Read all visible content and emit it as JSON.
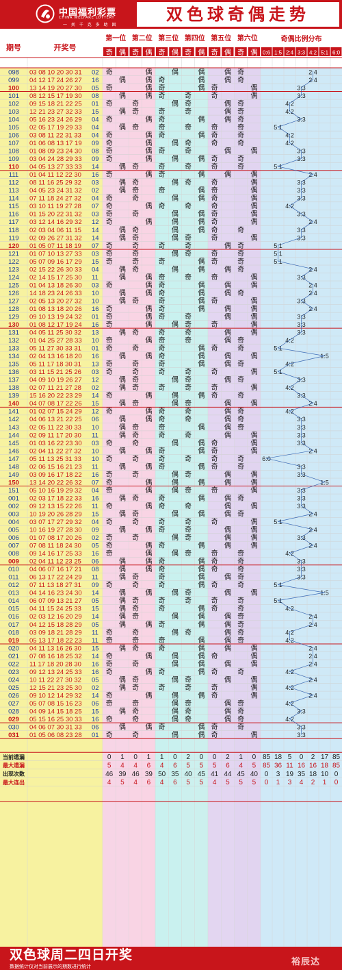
{
  "header": {
    "logo_cn": "中国福利彩票",
    "logo_en": "CHINA WELFARE LOTTERY",
    "logo_slogan": "一 关 千 克 多 助 困",
    "title": "双色球奇偶走势"
  },
  "columns": {
    "period": "期号",
    "draw": "开奖号",
    "positions": [
      "第一位",
      "第二位",
      "第三位",
      "第四位",
      "第五位",
      "第六位"
    ],
    "odd": "奇",
    "even": "偶",
    "ratio_title": "奇偶比例分布",
    "ratios": [
      "0:6",
      "1:5",
      "2:4",
      "3:3",
      "4:2",
      "5:1",
      "6:0"
    ]
  },
  "chart_data": {
    "type": "table",
    "rows": [
      {
        "p": "098",
        "n": "03 08 10 20 30 31",
        "b": "02"
      },
      {
        "p": "099",
        "n": "04 12 17 24 26 27",
        "b": "16"
      },
      {
        "p": "100",
        "n": "13 14 19 20 27 30",
        "b": "05"
      },
      {
        "p": "101",
        "n": "08 12 15 17 19 30",
        "b": "08"
      },
      {
        "p": "102",
        "n": "09 15 18 21 22 25",
        "b": "01"
      },
      {
        "p": "103",
        "n": "12 21 23 27 32 33",
        "b": "15"
      },
      {
        "p": "104",
        "n": "05 16 23 24 26 29",
        "b": "04"
      },
      {
        "p": "105",
        "n": "02 05 17 19 29 33",
        "b": "04"
      },
      {
        "p": "106",
        "n": "03 08 11 22 31 33",
        "b": "04"
      },
      {
        "p": "107",
        "n": "01 06 08 13 17 19",
        "b": "09"
      },
      {
        "p": "108",
        "n": "01 08 09 23 24 30",
        "b": "08"
      },
      {
        "p": "109",
        "n": "03 04 24 28 29 33",
        "b": "09"
      },
      {
        "p": "110",
        "n": "04 05 13 27 33 33",
        "b": "14"
      },
      {
        "p": "111",
        "n": "01 04 11 12 22 30",
        "b": "16"
      },
      {
        "p": "112",
        "n": "08 11 16 25 29 32",
        "b": "03"
      },
      {
        "p": "113",
        "n": "04 05 23 24 31 32",
        "b": "02"
      },
      {
        "p": "114",
        "n": "07 11 18 24 27 32",
        "b": "04"
      },
      {
        "p": "115",
        "n": "03 10 11 19 27 28",
        "b": "07"
      },
      {
        "p": "116",
        "n": "01 15 20 22 31 32",
        "b": "03"
      },
      {
        "p": "117",
        "n": "03 12 14 16 29 32",
        "b": "12"
      },
      {
        "p": "118",
        "n": "02 03 04 06 11 15",
        "b": "14"
      },
      {
        "p": "119",
        "n": "02 09 26 27 31 32",
        "b": "14"
      },
      {
        "p": "120",
        "n": "01 05 07 11 18 19",
        "b": "07"
      },
      {
        "p": "121",
        "n": "01 07 10 13 27 33",
        "b": "03"
      },
      {
        "p": "122",
        "n": "05 07 09 16 17 29",
        "b": "15"
      },
      {
        "p": "123",
        "n": "02 15 22 26 30 33",
        "b": "04"
      },
      {
        "p": "124",
        "n": "02 14 15 17 25 30",
        "b": "11"
      },
      {
        "p": "125",
        "n": "01 04 13 18 26 30",
        "b": "03"
      },
      {
        "p": "126",
        "n": "14 18 23 24 26 33",
        "b": "10"
      },
      {
        "p": "127",
        "n": "02 05 13 20 27 32",
        "b": "10"
      },
      {
        "p": "128",
        "n": "01 08 13 18 20 26",
        "b": "16"
      },
      {
        "p": "129",
        "n": "09 10 13 19 24 32",
        "b": "01"
      },
      {
        "p": "130",
        "n": "01 08 12 17 19 24",
        "b": "16"
      },
      {
        "p": "131",
        "n": "04 05 11 25 30 32",
        "b": "13"
      },
      {
        "p": "132",
        "n": "01 04 25 27 28 33",
        "b": "10"
      },
      {
        "p": "133",
        "n": "05 11 27 30 33 31",
        "b": "01"
      },
      {
        "p": "134",
        "n": "02 04 13 16 18 20",
        "b": "16"
      },
      {
        "p": "135",
        "n": "05 11 17 18 30 31",
        "b": "13"
      },
      {
        "p": "136",
        "n": "03 11 15 21 25 26",
        "b": "03"
      },
      {
        "p": "137",
        "n": "04 09 10 19 26 27",
        "b": "12"
      },
      {
        "p": "138",
        "n": "02 07 11 21 27 28",
        "b": "02"
      },
      {
        "p": "139",
        "n": "15 16 20 22 23 29",
        "b": "14"
      },
      {
        "p": "140",
        "n": "04 07 08 17 22 26",
        "b": "15"
      },
      {
        "p": "141",
        "n": "01 02 07 15 24 29",
        "b": "12"
      },
      {
        "p": "142",
        "n": "04 06 13 21 22 25",
        "b": "06"
      },
      {
        "p": "143",
        "n": "02 05 11 22 30 33",
        "b": "10"
      },
      {
        "p": "144",
        "n": "02 09 11 17 20 30",
        "b": "11"
      },
      {
        "p": "145",
        "n": "01 03 16 22 23 30",
        "b": "03"
      },
      {
        "p": "146",
        "n": "02 04 11 22 27 32",
        "b": "10"
      },
      {
        "p": "147",
        "n": "05 11 13 25 31 33",
        "b": "10"
      },
      {
        "p": "148",
        "n": "02 06 15 16 21 23",
        "b": "11"
      },
      {
        "p": "149",
        "n": "03 09 16 17 18 22",
        "b": "16"
      },
      {
        "p": "150",
        "n": "13 14 20 22 26 32",
        "b": "07"
      },
      {
        "p": "151",
        "n": "05 10 16 19 29 32",
        "b": "04"
      },
      {
        "p": "001",
        "n": "02 03 17 18 22 33",
        "b": "16"
      },
      {
        "p": "002",
        "n": "09 12 13 15 22 26",
        "b": "11"
      },
      {
        "p": "003",
        "n": "10 19 20 26 28 29",
        "b": "15"
      },
      {
        "p": "004",
        "n": "03 07 17 27 29 32",
        "b": "04"
      },
      {
        "p": "005",
        "n": "10 16 19 27 28 30",
        "b": "09"
      },
      {
        "p": "006",
        "n": "01 07 08 17 20 26",
        "b": "02"
      },
      {
        "p": "007",
        "n": "07 08 11 18 24 30",
        "b": "05"
      },
      {
        "p": "008",
        "n": "09 14 16 17 25 33",
        "b": "16"
      },
      {
        "p": "009",
        "n": "02 04 11 12 23 25",
        "b": "06"
      },
      {
        "p": "010",
        "n": "04 06 07 16 17 21",
        "b": "08"
      },
      {
        "p": "011",
        "n": "06 13 17 22 24 29",
        "b": "11"
      },
      {
        "p": "012",
        "n": "07 11 13 18 27 31",
        "b": "09"
      },
      {
        "p": "013",
        "n": "04 14 16 23 24 30",
        "b": "14"
      },
      {
        "p": "014",
        "n": "06 07 09 13 21 27",
        "b": "05"
      },
      {
        "p": "015",
        "n": "04 11 15 24 25 33",
        "b": "15"
      },
      {
        "p": "016",
        "n": "02 03 12 16 20 29",
        "b": "14"
      },
      {
        "p": "017",
        "n": "04 12 15 18 28 29",
        "b": "05"
      },
      {
        "p": "018",
        "n": "03 09 18 21 28 29",
        "b": "11"
      },
      {
        "p": "019",
        "n": "05 13 17 18 22 23",
        "b": "11"
      },
      {
        "p": "020",
        "n": "04 11 13 16 26 30",
        "b": "15"
      },
      {
        "p": "021",
        "n": "07 08 16 18 25 32",
        "b": "14"
      },
      {
        "p": "022",
        "n": "11 17 18 20 28 30",
        "b": "16"
      },
      {
        "p": "023",
        "n": "09 12 13 24 25 33",
        "b": "16"
      },
      {
        "p": "024",
        "n": "10 11 22 27 30 32",
        "b": "05"
      },
      {
        "p": "025",
        "n": "12 15 21 23 25 30",
        "b": "02"
      },
      {
        "p": "026",
        "n": "09 10 12 14 29 32",
        "b": "14"
      },
      {
        "p": "027",
        "n": "05 07 08 15 16 23",
        "b": "06"
      },
      {
        "p": "028",
        "n": "04 09 14 15 18 25",
        "b": "15"
      },
      {
        "p": "029",
        "n": "05 15 16 25 30 33",
        "b": "16"
      },
      {
        "p": "030",
        "n": "04 06 07 30 31 33",
        "b": "06"
      },
      {
        "p": "031",
        "n": "01 05 06 08 23 28",
        "b": "01"
      }
    ],
    "stats": [
      {
        "label": "当前遗漏",
        "values": [
          0,
          1,
          0,
          1,
          1,
          0,
          2,
          0,
          0,
          2,
          1,
          0,
          85,
          18,
          5,
          0,
          2,
          17,
          85
        ]
      },
      {
        "label": "最大遗漏",
        "values": [
          5,
          4,
          4,
          6,
          4,
          6,
          5,
          5,
          5,
          6,
          4,
          5,
          85,
          36,
          11,
          16,
          16,
          18,
          85
        ]
      },
      {
        "label": "出现次数",
        "values": [
          46,
          39,
          46,
          39,
          50,
          35,
          40,
          45,
          41,
          44,
          45,
          40,
          0,
          3,
          19,
          35,
          18,
          10,
          0
        ]
      },
      {
        "label": "最大连出",
        "values": [
          4,
          5,
          4,
          6,
          4,
          6,
          5,
          5,
          4,
          5,
          5,
          5,
          0,
          1,
          3,
          4,
          2,
          1,
          0
        ]
      }
    ]
  },
  "footer": {
    "line1": "双色球周二四日开奖",
    "line2": "数据统计仅对当前展示的期数进行统计",
    "signature": "裕辰达"
  }
}
